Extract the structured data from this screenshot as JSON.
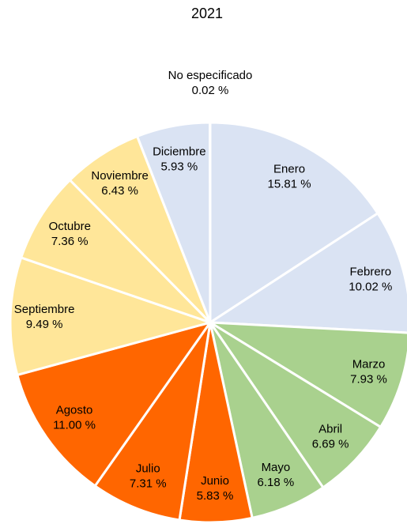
{
  "chart_data": {
    "type": "pie",
    "title": "2021",
    "categories": [
      "Enero",
      "Febrero",
      "Marzo",
      "Abril",
      "Mayo",
      "Junio",
      "Julio",
      "Agosto",
      "Septiembre",
      "Octubre",
      "Noviembre",
      "Diciembre",
      "No especificado"
    ],
    "values": [
      15.81,
      10.02,
      7.93,
      6.69,
      6.18,
      5.83,
      7.31,
      11.0,
      9.49,
      7.36,
      6.43,
      5.93,
      0.02
    ],
    "value_labels": [
      "15.81 %",
      "10.02 %",
      "7.93 %",
      "6.69 %",
      "6.18 %",
      "5.83 %",
      "7.31 %",
      "11.00 %",
      "9.49 %",
      "7.36 %",
      "6.43 %",
      "5.93 %",
      "0.02 %"
    ],
    "colors": [
      "#dae3f3",
      "#dae3f3",
      "#a9d18e",
      "#a9d18e",
      "#a9d18e",
      "#ff6600",
      "#ff6600",
      "#ff6600",
      "#ffe699",
      "#ffe699",
      "#ffe699",
      "#dae3f3",
      "#dae3f3"
    ]
  }
}
